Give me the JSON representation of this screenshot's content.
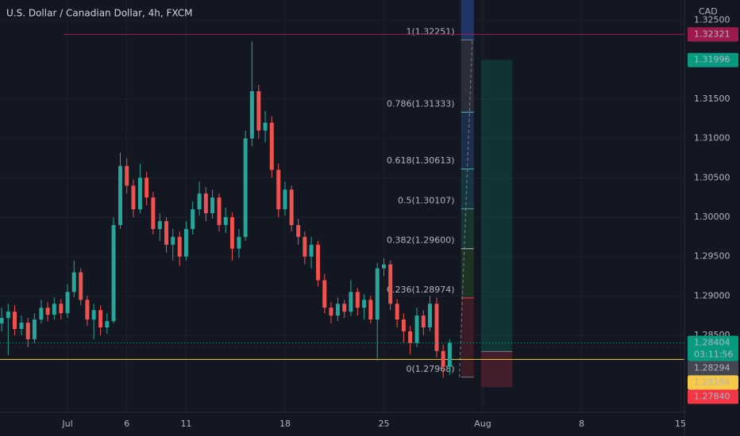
{
  "chart_data": {
    "type": "candlestick",
    "title": "U.S. Dollar / Canadian Dollar, 4h, FXCM",
    "currency": "CAD",
    "up_color": "#26a69a",
    "down_color": "#ef5350",
    "grid": true,
    "xlim": [
      -3.414,
      31.2
    ],
    "ylim": [
      1.27523,
      1.32758
    ],
    "xticks": [
      {
        "value": 0,
        "label": "Jul"
      },
      {
        "value": 3,
        "label": "6"
      },
      {
        "value": 6,
        "label": "11"
      },
      {
        "value": 11,
        "label": "18"
      },
      {
        "value": 16,
        "label": "25"
      },
      {
        "value": 21,
        "label": "Aug"
      },
      {
        "value": 26,
        "label": "8"
      },
      {
        "value": 31,
        "label": "15"
      }
    ],
    "yticks": [
      {
        "value": 1.325,
        "label": "1.32500"
      },
      {
        "value": 1.315,
        "label": "1.31500"
      },
      {
        "value": 1.31,
        "label": "1.31000"
      },
      {
        "value": 1.305,
        "label": "1.30500"
      },
      {
        "value": 1.3,
        "label": "1.30000"
      },
      {
        "value": 1.295,
        "label": "1.29500"
      },
      {
        "value": 1.29,
        "label": "1.29000"
      },
      {
        "value": 1.285,
        "label": "1.28500"
      }
    ],
    "x": [
      -3.33,
      -3.0,
      -2.67,
      -2.33,
      -2.0,
      -1.67,
      -1.33,
      -1.0,
      -0.67,
      -0.33,
      0,
      0.33,
      0.67,
      1.0,
      1.33,
      1.67,
      2.0,
      2.33,
      2.67,
      3.0,
      3.33,
      3.67,
      4.0,
      4.33,
      4.67,
      5.0,
      5.33,
      5.67,
      6.0,
      6.33,
      6.67,
      7.0,
      7.33,
      7.67,
      8.0,
      8.33,
      8.67,
      9.0,
      9.33,
      9.67,
      10.0,
      10.33,
      10.67,
      11.0,
      11.33,
      11.67,
      12.0,
      12.33,
      12.67,
      13.0,
      13.33,
      13.67,
      14.0,
      14.33,
      14.67,
      15.0,
      15.33,
      15.67,
      16.0,
      16.33,
      16.67,
      17.0,
      17.33,
      17.67,
      18.0,
      18.33,
      18.67,
      19.0,
      19.33
    ],
    "open": [
      1.2865,
      1.2872,
      1.288,
      1.2858,
      1.2866,
      1.2845,
      1.287,
      1.2885,
      1.2876,
      1.289,
      1.2878,
      1.2905,
      1.293,
      1.2895,
      1.287,
      1.2882,
      1.286,
      1.2868,
      1.299,
      1.3065,
      1.304,
      1.301,
      1.305,
      1.3025,
      1.2985,
      1.2995,
      1.2965,
      1.2975,
      1.295,
      1.2985,
      1.301,
      1.303,
      1.3005,
      1.3025,
      1.299,
      1.3,
      1.296,
      1.2975,
      1.31,
      1.316,
      1.311,
      1.312,
      1.306,
      1.301,
      1.3035,
      1.299,
      1.2975,
      1.295,
      1.2965,
      1.292,
      1.2885,
      1.2875,
      1.289,
      1.288,
      1.2905,
      1.2885,
      1.2895,
      1.287,
      1.2935,
      1.294,
      1.289,
      1.287,
      1.2855,
      1.284,
      1.2875,
      1.286,
      1.289,
      1.283,
      1.281
    ],
    "high": [
      1.2885,
      1.289,
      1.2888,
      1.2875,
      1.2872,
      1.2878,
      1.2895,
      1.2892,
      1.2898,
      1.2896,
      1.2915,
      1.2945,
      1.2935,
      1.29,
      1.289,
      1.2888,
      1.2878,
      1.3,
      1.3082,
      1.3075,
      1.3048,
      1.3068,
      1.3058,
      1.3032,
      1.3005,
      1.3,
      1.2985,
      1.2982,
      1.2995,
      1.302,
      1.3045,
      1.3038,
      1.3035,
      1.303,
      1.3012,
      1.3006,
      1.2985,
      1.311,
      1.3223,
      1.3168,
      1.3135,
      1.3128,
      1.3068,
      1.3045,
      1.304,
      1.2998,
      1.2982,
      1.2975,
      1.297,
      1.2928,
      1.2892,
      1.2898,
      1.2895,
      1.292,
      1.291,
      1.2902,
      1.29,
      1.2942,
      1.2948,
      1.2945,
      1.2896,
      1.2878,
      1.2862,
      1.2885,
      1.2882,
      1.29,
      1.2898,
      1.2838,
      1.2845
    ],
    "low": [
      1.2855,
      1.2825,
      1.285,
      1.285,
      1.2835,
      1.284,
      1.2865,
      1.2868,
      1.287,
      1.287,
      1.2872,
      1.2898,
      1.2888,
      1.2862,
      1.2845,
      1.285,
      1.2852,
      1.2865,
      1.2985,
      1.303,
      1.3,
      1.3005,
      1.3015,
      1.2978,
      1.297,
      1.2955,
      1.2945,
      1.2938,
      1.2945,
      1.2978,
      1.3002,
      1.2995,
      1.2998,
      1.2982,
      1.298,
      1.2945,
      1.2948,
      1.297,
      1.309,
      1.31,
      1.3095,
      1.305,
      1.3,
      1.3002,
      1.2982,
      1.2965,
      1.294,
      1.2935,
      1.2912,
      1.2878,
      1.2865,
      1.2868,
      1.2872,
      1.2875,
      1.2875,
      1.287,
      1.2865,
      1.2818,
      1.2925,
      1.2882,
      1.286,
      1.284,
      1.2826,
      1.2835,
      1.285,
      1.2855,
      1.2822,
      1.2796,
      1.28
    ],
    "close": [
      1.2872,
      1.288,
      1.2858,
      1.2866,
      1.2845,
      1.287,
      1.2885,
      1.2876,
      1.289,
      1.2878,
      1.2905,
      1.293,
      1.2895,
      1.287,
      1.2882,
      1.286,
      1.2868,
      1.299,
      1.3065,
      1.304,
      1.301,
      1.305,
      1.3025,
      1.2985,
      1.2995,
      1.2965,
      1.2975,
      1.295,
      1.2985,
      1.301,
      1.303,
      1.3005,
      1.3025,
      1.299,
      1.3,
      1.296,
      1.2975,
      1.31,
      1.316,
      1.311,
      1.312,
      1.306,
      1.301,
      1.3035,
      1.299,
      1.2975,
      1.295,
      1.2965,
      1.292,
      1.2885,
      1.2875,
      1.289,
      1.288,
      1.2905,
      1.2885,
      1.2895,
      1.287,
      1.2935,
      1.294,
      1.289,
      1.287,
      1.2855,
      1.284,
      1.2875,
      1.286,
      1.289,
      1.283,
      1.281,
      1.28404
    ],
    "last_price": {
      "value": 1.28404,
      "countdown": "03:11:56",
      "color": "#089981"
    },
    "horizontal_lines": [
      {
        "value": 1.32321,
        "x_start": -0.2,
        "color": "#9c1a4e"
      },
      {
        "value": 1.28194,
        "x_start": -3.414,
        "color": "#f7c948"
      }
    ],
    "position": {
      "x_range": [
        20.92,
        22.49
      ],
      "target": 1.31996,
      "entry": 1.28294,
      "stop": {
        "value": 1.2784,
        "label": "1.27840"
      },
      "target_color": "#089981",
      "entry_color": "#434651",
      "stop_color": "#f23645"
    },
    "fib": {
      "x_range": [
        19.9,
        20.55
      ],
      "top_color": "#1f3566",
      "levels": [
        {
          "value": 1.32251,
          "label": "1(1.32251)",
          "color": "#787b86",
          "fill": "#2a2e39"
        },
        {
          "value": 1.31333,
          "label": "0.786(1.31333)",
          "color": "#4db6ac",
          "fill": "#1b2f4a"
        },
        {
          "value": 1.30613,
          "label": "0.618(1.30613)",
          "color": "#4db6ac",
          "fill": "#173640"
        },
        {
          "value": 1.30107,
          "label": "0.5(1.30107)",
          "color": "#5d9e93",
          "fill": "#18352f"
        },
        {
          "value": 1.296,
          "label": "0.382(1.29600)",
          "color": "#b2b5be",
          "fill": "#1d3323"
        },
        {
          "value": 1.28974,
          "label": "0.236(1.28974)",
          "color": "#f23645",
          "fill": "#3a1c24"
        },
        {
          "value": 1.27968,
          "label": "0(1.27968)",
          "color": "#787b86"
        }
      ]
    }
  }
}
